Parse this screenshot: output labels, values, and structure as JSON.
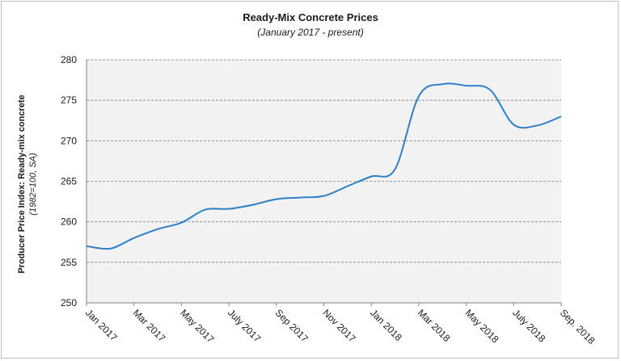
{
  "chart_data": {
    "type": "line",
    "title": "Ready-Mix Concrete Prices",
    "subtitle": "(January 2017 - present)",
    "ylabel": "Producer Price Index: Ready-mix concrete",
    "ylabel_sub": "(1982=100, SA)",
    "xlabel": "",
    "ylim": [
      250,
      280
    ],
    "yticks": [
      250,
      255,
      260,
      265,
      270,
      275,
      280
    ],
    "xtick_labels": [
      "Jan 2017",
      "Mar 2017",
      "May 2017",
      "July 2017",
      "Sep 2017",
      "Nov 2017",
      "Jan 2018",
      "Mar 2018",
      "May 2018",
      "July 2018",
      "Sep. 2018"
    ],
    "grid": "horizontal dashed",
    "plot_background": "#f2f2f2",
    "series": [
      {
        "color": "#2e7fc6",
        "values": [
          257.0,
          256.7,
          258.0,
          259.1,
          259.9,
          261.5,
          261.6,
          262.1,
          262.8,
          263.0,
          263.2,
          264.4,
          265.6,
          266.5,
          275.5,
          277.0,
          276.8,
          276.3,
          272.0,
          271.9,
          273.0
        ]
      }
    ]
  }
}
